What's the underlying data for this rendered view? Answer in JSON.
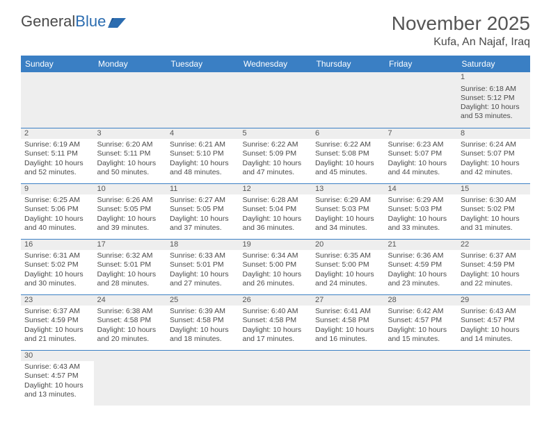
{
  "logo": {
    "text1": "General",
    "text2": "Blue"
  },
  "title": "November 2025",
  "location": "Kufa, An Najaf, Iraq",
  "colors": {
    "header_bg": "#3a7fc4",
    "header_fg": "#ffffff",
    "rule": "#3a7fc4",
    "daynum_bg": "#eeeeee",
    "text": "#4a4a4a"
  },
  "weekdays": [
    "Sunday",
    "Monday",
    "Tuesday",
    "Wednesday",
    "Thursday",
    "Friday",
    "Saturday"
  ],
  "weeks": [
    [
      null,
      null,
      null,
      null,
      null,
      null,
      {
        "n": "1",
        "sr": "Sunrise: 6:18 AM",
        "ss": "Sunset: 5:12 PM",
        "d1": "Daylight: 10 hours",
        "d2": "and 53 minutes."
      }
    ],
    [
      {
        "n": "2",
        "sr": "Sunrise: 6:19 AM",
        "ss": "Sunset: 5:11 PM",
        "d1": "Daylight: 10 hours",
        "d2": "and 52 minutes."
      },
      {
        "n": "3",
        "sr": "Sunrise: 6:20 AM",
        "ss": "Sunset: 5:11 PM",
        "d1": "Daylight: 10 hours",
        "d2": "and 50 minutes."
      },
      {
        "n": "4",
        "sr": "Sunrise: 6:21 AM",
        "ss": "Sunset: 5:10 PM",
        "d1": "Daylight: 10 hours",
        "d2": "and 48 minutes."
      },
      {
        "n": "5",
        "sr": "Sunrise: 6:22 AM",
        "ss": "Sunset: 5:09 PM",
        "d1": "Daylight: 10 hours",
        "d2": "and 47 minutes."
      },
      {
        "n": "6",
        "sr": "Sunrise: 6:22 AM",
        "ss": "Sunset: 5:08 PM",
        "d1": "Daylight: 10 hours",
        "d2": "and 45 minutes."
      },
      {
        "n": "7",
        "sr": "Sunrise: 6:23 AM",
        "ss": "Sunset: 5:07 PM",
        "d1": "Daylight: 10 hours",
        "d2": "and 44 minutes."
      },
      {
        "n": "8",
        "sr": "Sunrise: 6:24 AM",
        "ss": "Sunset: 5:07 PM",
        "d1": "Daylight: 10 hours",
        "d2": "and 42 minutes."
      }
    ],
    [
      {
        "n": "9",
        "sr": "Sunrise: 6:25 AM",
        "ss": "Sunset: 5:06 PM",
        "d1": "Daylight: 10 hours",
        "d2": "and 40 minutes."
      },
      {
        "n": "10",
        "sr": "Sunrise: 6:26 AM",
        "ss": "Sunset: 5:05 PM",
        "d1": "Daylight: 10 hours",
        "d2": "and 39 minutes."
      },
      {
        "n": "11",
        "sr": "Sunrise: 6:27 AM",
        "ss": "Sunset: 5:05 PM",
        "d1": "Daylight: 10 hours",
        "d2": "and 37 minutes."
      },
      {
        "n": "12",
        "sr": "Sunrise: 6:28 AM",
        "ss": "Sunset: 5:04 PM",
        "d1": "Daylight: 10 hours",
        "d2": "and 36 minutes."
      },
      {
        "n": "13",
        "sr": "Sunrise: 6:29 AM",
        "ss": "Sunset: 5:03 PM",
        "d1": "Daylight: 10 hours",
        "d2": "and 34 minutes."
      },
      {
        "n": "14",
        "sr": "Sunrise: 6:29 AM",
        "ss": "Sunset: 5:03 PM",
        "d1": "Daylight: 10 hours",
        "d2": "and 33 minutes."
      },
      {
        "n": "15",
        "sr": "Sunrise: 6:30 AM",
        "ss": "Sunset: 5:02 PM",
        "d1": "Daylight: 10 hours",
        "d2": "and 31 minutes."
      }
    ],
    [
      {
        "n": "16",
        "sr": "Sunrise: 6:31 AM",
        "ss": "Sunset: 5:02 PM",
        "d1": "Daylight: 10 hours",
        "d2": "and 30 minutes."
      },
      {
        "n": "17",
        "sr": "Sunrise: 6:32 AM",
        "ss": "Sunset: 5:01 PM",
        "d1": "Daylight: 10 hours",
        "d2": "and 28 minutes."
      },
      {
        "n": "18",
        "sr": "Sunrise: 6:33 AM",
        "ss": "Sunset: 5:01 PM",
        "d1": "Daylight: 10 hours",
        "d2": "and 27 minutes."
      },
      {
        "n": "19",
        "sr": "Sunrise: 6:34 AM",
        "ss": "Sunset: 5:00 PM",
        "d1": "Daylight: 10 hours",
        "d2": "and 26 minutes."
      },
      {
        "n": "20",
        "sr": "Sunrise: 6:35 AM",
        "ss": "Sunset: 5:00 PM",
        "d1": "Daylight: 10 hours",
        "d2": "and 24 minutes."
      },
      {
        "n": "21",
        "sr": "Sunrise: 6:36 AM",
        "ss": "Sunset: 4:59 PM",
        "d1": "Daylight: 10 hours",
        "d2": "and 23 minutes."
      },
      {
        "n": "22",
        "sr": "Sunrise: 6:37 AM",
        "ss": "Sunset: 4:59 PM",
        "d1": "Daylight: 10 hours",
        "d2": "and 22 minutes."
      }
    ],
    [
      {
        "n": "23",
        "sr": "Sunrise: 6:37 AM",
        "ss": "Sunset: 4:59 PM",
        "d1": "Daylight: 10 hours",
        "d2": "and 21 minutes."
      },
      {
        "n": "24",
        "sr": "Sunrise: 6:38 AM",
        "ss": "Sunset: 4:58 PM",
        "d1": "Daylight: 10 hours",
        "d2": "and 20 minutes."
      },
      {
        "n": "25",
        "sr": "Sunrise: 6:39 AM",
        "ss": "Sunset: 4:58 PM",
        "d1": "Daylight: 10 hours",
        "d2": "and 18 minutes."
      },
      {
        "n": "26",
        "sr": "Sunrise: 6:40 AM",
        "ss": "Sunset: 4:58 PM",
        "d1": "Daylight: 10 hours",
        "d2": "and 17 minutes."
      },
      {
        "n": "27",
        "sr": "Sunrise: 6:41 AM",
        "ss": "Sunset: 4:58 PM",
        "d1": "Daylight: 10 hours",
        "d2": "and 16 minutes."
      },
      {
        "n": "28",
        "sr": "Sunrise: 6:42 AM",
        "ss": "Sunset: 4:57 PM",
        "d1": "Daylight: 10 hours",
        "d2": "and 15 minutes."
      },
      {
        "n": "29",
        "sr": "Sunrise: 6:43 AM",
        "ss": "Sunset: 4:57 PM",
        "d1": "Daylight: 10 hours",
        "d2": "and 14 minutes."
      }
    ],
    [
      {
        "n": "30",
        "sr": "Sunrise: 6:43 AM",
        "ss": "Sunset: 4:57 PM",
        "d1": "Daylight: 10 hours",
        "d2": "and 13 minutes."
      },
      null,
      null,
      null,
      null,
      null,
      null
    ]
  ]
}
